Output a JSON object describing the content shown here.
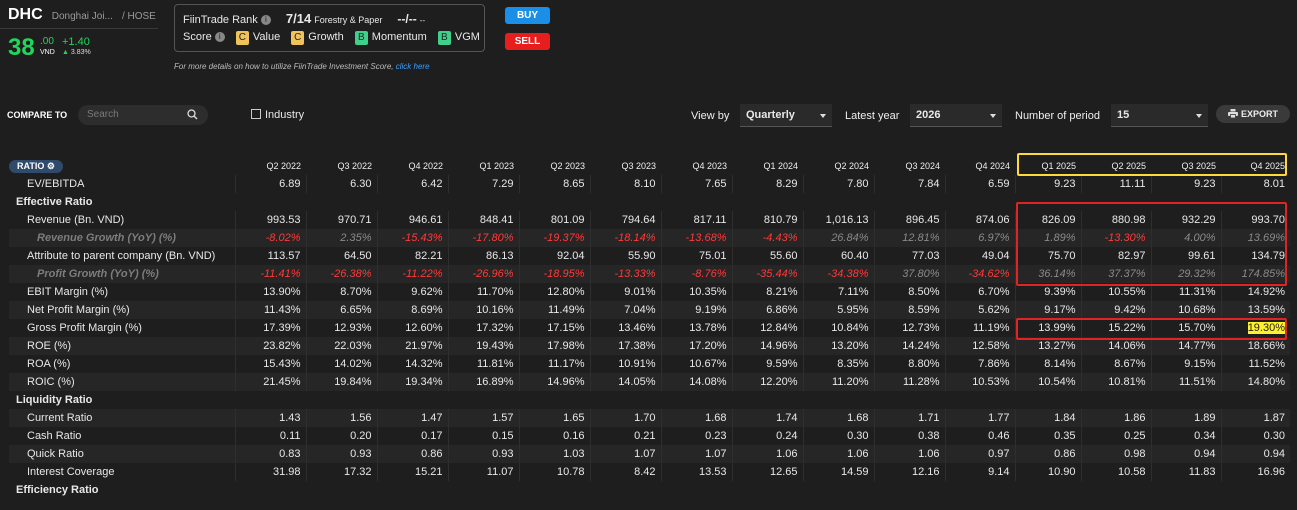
{
  "ticker": {
    "symbol": "DHC",
    "name": "Donghai Joi...",
    "exchange": "/ HOSE"
  },
  "price": {
    "main": "38",
    "decimal": ".00",
    "unit": "VND",
    "change": "+1.40",
    "change_pct": "3.83%"
  },
  "rank": {
    "label": "FiinTrade Rank",
    "info_icon": "info-icon",
    "value": "7/14",
    "sector": "Forestry & Paper",
    "dash": "--/--",
    "dash_small": "--"
  },
  "score": {
    "label": "Score",
    "items": [
      {
        "grade": "C",
        "name": "Value",
        "color": "#f0c25a"
      },
      {
        "grade": "C",
        "name": "Growth",
        "color": "#f0c25a"
      },
      {
        "grade": "B",
        "name": "Momentum",
        "color": "#3fd18c"
      },
      {
        "grade": "B",
        "name": "VGM",
        "color": "#3fd18c"
      }
    ]
  },
  "actions": {
    "buy": "BUY",
    "sell": "SELL"
  },
  "note": {
    "text": "For more details on how to utilize FiinTrade Investment Score, ",
    "link": "click here"
  },
  "controls": {
    "compare_to": "COMPARE TO",
    "search_placeholder": "Search",
    "industry": "Industry",
    "view_by_label": "View by",
    "view_by_value": "Quarterly",
    "latest_year_label": "Latest year",
    "latest_year_value": "2026",
    "num_period_label": "Number of period",
    "num_period_value": "15",
    "export": "EXPORT"
  },
  "table": {
    "header_label": "RATIO",
    "periods": [
      "Q2 2022",
      "Q3 2022",
      "Q4 2022",
      "Q1 2023",
      "Q2 2023",
      "Q3 2023",
      "Q4 2023",
      "Q1 2024",
      "Q2 2024",
      "Q3 2024",
      "Q4 2024",
      "Q1 2025",
      "Q2 2025",
      "Q3 2025",
      "Q4 2025"
    ],
    "rows": [
      {
        "type": "ind",
        "label": "EV/EBITDA",
        "values": [
          "6.89",
          "6.30",
          "6.42",
          "7.29",
          "8.65",
          "8.10",
          "7.65",
          "8.29",
          "7.80",
          "7.84",
          "6.59",
          "9.23",
          "11.11",
          "9.23",
          "8.01"
        ]
      },
      {
        "type": "sec",
        "label": "Effective Ratio"
      },
      {
        "type": "ind",
        "label": "Revenue (Bn. VND)",
        "values": [
          "993.53",
          "970.71",
          "946.61",
          "848.41",
          "801.09",
          "794.64",
          "817.11",
          "810.79",
          "1,016.13",
          "896.45",
          "874.06",
          "826.09",
          "880.98",
          "932.29",
          "993.70"
        ]
      },
      {
        "type": "sub",
        "label": "Revenue Growth (YoY) (%)",
        "values": [
          "-8.02%",
          "2.35%",
          "-15.43%",
          "-17.80%",
          "-19.37%",
          "-18.14%",
          "-13.68%",
          "-4.43%",
          "26.84%",
          "12.81%",
          "6.97%",
          "1.89%",
          "-13.30%",
          "4.00%",
          "13.69%"
        ]
      },
      {
        "type": "ind",
        "label": "Attribute to parent company (Bn. VND)",
        "values": [
          "113.57",
          "64.50",
          "82.21",
          "86.13",
          "92.04",
          "55.90",
          "75.01",
          "55.60",
          "60.40",
          "77.03",
          "49.04",
          "75.70",
          "82.97",
          "99.61",
          "134.79"
        ]
      },
      {
        "type": "sub",
        "label": "Profit Growth (YoY) (%)",
        "values": [
          "-11.41%",
          "-26.38%",
          "-11.22%",
          "-26.96%",
          "-18.95%",
          "-13.33%",
          "-8.76%",
          "-35.44%",
          "-34.38%",
          "37.80%",
          "-34.62%",
          "36.14%",
          "37.37%",
          "29.32%",
          "174.85%"
        ]
      },
      {
        "type": "ind",
        "label": "EBIT Margin (%)",
        "values": [
          "13.90%",
          "8.70%",
          "9.62%",
          "11.70%",
          "12.80%",
          "9.01%",
          "10.35%",
          "8.21%",
          "7.11%",
          "8.50%",
          "6.70%",
          "9.39%",
          "10.55%",
          "11.31%",
          "14.92%"
        ]
      },
      {
        "type": "ind",
        "label": "Net Profit Margin (%)",
        "values": [
          "11.43%",
          "6.65%",
          "8.69%",
          "10.16%",
          "11.49%",
          "7.04%",
          "9.19%",
          "6.86%",
          "5.95%",
          "8.59%",
          "5.62%",
          "9.17%",
          "9.42%",
          "10.68%",
          "13.59%"
        ]
      },
      {
        "type": "ind",
        "label": "Gross Profit Margin (%)",
        "values": [
          "17.39%",
          "12.93%",
          "12.60%",
          "17.32%",
          "17.15%",
          "13.46%",
          "13.78%",
          "12.84%",
          "10.84%",
          "12.73%",
          "11.19%",
          "13.99%",
          "15.22%",
          "15.70%",
          "19.30%"
        ]
      },
      {
        "type": "ind",
        "label": "ROE (%)",
        "values": [
          "23.82%",
          "22.03%",
          "21.97%",
          "19.43%",
          "17.98%",
          "17.38%",
          "17.20%",
          "14.96%",
          "13.20%",
          "14.24%",
          "12.58%",
          "13.27%",
          "14.06%",
          "14.77%",
          "18.66%"
        ]
      },
      {
        "type": "ind",
        "label": "ROA (%)",
        "values": [
          "15.43%",
          "14.02%",
          "14.32%",
          "11.81%",
          "11.17%",
          "10.91%",
          "10.67%",
          "9.59%",
          "8.35%",
          "8.80%",
          "7.86%",
          "8.14%",
          "8.67%",
          "9.15%",
          "11.52%"
        ]
      },
      {
        "type": "ind",
        "label": "ROIC (%)",
        "values": [
          "21.45%",
          "19.84%",
          "19.34%",
          "16.89%",
          "14.96%",
          "14.05%",
          "14.08%",
          "12.20%",
          "11.20%",
          "11.28%",
          "10.53%",
          "10.54%",
          "10.81%",
          "11.51%",
          "14.80%"
        ]
      },
      {
        "type": "sec",
        "label": "Liquidity Ratio"
      },
      {
        "type": "ind",
        "label": "Current Ratio",
        "values": [
          "1.43",
          "1.56",
          "1.47",
          "1.57",
          "1.65",
          "1.70",
          "1.68",
          "1.74",
          "1.68",
          "1.71",
          "1.77",
          "1.84",
          "1.86",
          "1.89",
          "1.87"
        ]
      },
      {
        "type": "ind",
        "label": "Cash Ratio",
        "values": [
          "0.11",
          "0.20",
          "0.17",
          "0.15",
          "0.16",
          "0.21",
          "0.23",
          "0.24",
          "0.30",
          "0.38",
          "0.46",
          "0.35",
          "0.25",
          "0.34",
          "0.30"
        ]
      },
      {
        "type": "ind",
        "label": "Quick Ratio",
        "values": [
          "0.83",
          "0.93",
          "0.86",
          "0.93",
          "1.03",
          "1.07",
          "1.07",
          "1.06",
          "1.06",
          "1.06",
          "0.97",
          "0.86",
          "0.98",
          "0.94",
          "0.94"
        ]
      },
      {
        "type": "ind",
        "label": "Interest Coverage",
        "values": [
          "31.98",
          "17.32",
          "15.21",
          "11.07",
          "10.78",
          "8.42",
          "13.53",
          "12.65",
          "14.59",
          "12.16",
          "9.14",
          "10.90",
          "10.58",
          "11.83",
          "16.96"
        ]
      },
      {
        "type": "sec",
        "label": "Efficiency Ratio"
      }
    ]
  },
  "colors": {
    "negative": "#ff3a3a",
    "positive_growth": "#8a8a8a",
    "highlight_yellow": "#fff12a",
    "box_yellow": "#ffd83a",
    "box_red": "#e02424",
    "price_green": "#1fd85a"
  }
}
